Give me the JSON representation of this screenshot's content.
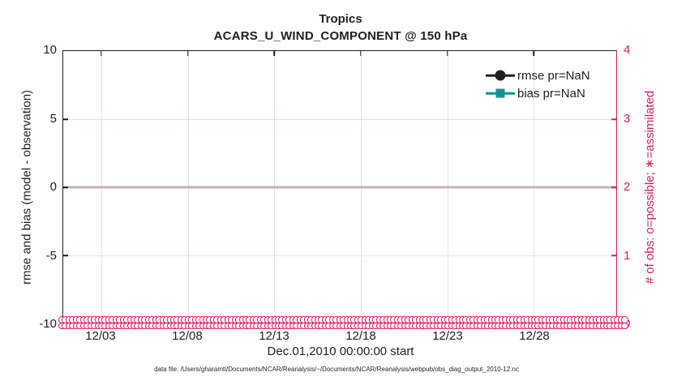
{
  "title": {
    "line1": "Tropics",
    "line2": "ACARS_U_WIND_COMPONENT @ 150 hPa"
  },
  "axes": {
    "x": {
      "tick_labels": [
        "12/03",
        "12/08",
        "12/13",
        "12/18",
        "12/23",
        "12/28"
      ],
      "label": "Dec.01,2010 00:00:00 start"
    },
    "y_left": {
      "label": "rmse and bias (model - observation)",
      "tick_labels": [
        "10",
        "5",
        "0",
        "-5",
        "-10"
      ]
    },
    "y_right": {
      "label": "# of obs: o=possible; ∗=assimilated",
      "tick_labels": [
        "4",
        "3",
        "2",
        "1",
        "0"
      ],
      "color": "#d81b60"
    }
  },
  "legend": [
    {
      "label": "rmse pr=NaN",
      "color": "#1f1f1f",
      "marker": "circle"
    },
    {
      "label": "bias pr=NaN",
      "color": "#12928c",
      "marker": "square"
    }
  ],
  "footer": "data file: /Users/gharamti/Documents/NCAR/Reanalysis/~/Documents/NCAR/Reanalysis/webpub/obs_diag_output_2010-12.nc",
  "colors": {
    "obs_marker": "#d81b60",
    "zero_line": "#c0b4b8",
    "bias": "#12928c",
    "rmse": "#1f1f1f"
  },
  "chart_data": {
    "type": "line",
    "title": "Tropics",
    "subtitle": "ACARS_U_WIND_COMPONENT @ 150 hPa",
    "x": {
      "label": "Dec.01,2010 00:00:00 start",
      "tick_labels": [
        "12/03",
        "12/08",
        "12/13",
        "12/18",
        "12/23",
        "12/28"
      ],
      "start": "Dec 01 2010 00:00:00",
      "span": "one month, December 2010"
    },
    "y_left": {
      "label": "rmse and bias (model - observation)",
      "lim": [
        -10,
        10
      ],
      "ticks": [
        10,
        5,
        0,
        -5,
        -10
      ]
    },
    "y_right": {
      "label": "# of obs: o=possible; ∗=assimilated",
      "lim": [
        0,
        4
      ],
      "ticks": [
        4,
        3,
        2,
        1,
        0
      ]
    },
    "series": [
      {
        "name": "rmse pr=NaN",
        "axis": "left",
        "marker": "circle",
        "color": "#1f1f1f",
        "values": "all NaN — no curve drawn"
      },
      {
        "name": "bias pr=NaN",
        "axis": "left",
        "marker": "square",
        "color": "#12928c",
        "values": "all NaN — no curve drawn"
      },
      {
        "name": "# obs possible (o)",
        "axis": "right",
        "marker": "o",
        "color": "#d81b60",
        "values": "0 at every time bin across the month"
      },
      {
        "name": "# obs assimilated (∗)",
        "axis": "right",
        "marker": "∗",
        "color": "#d81b60",
        "values": "0 at every time bin across the month"
      }
    ],
    "annotations": {
      "zero_reference_line": 0
    },
    "grid": true,
    "legend_position": "top-right, no box"
  }
}
